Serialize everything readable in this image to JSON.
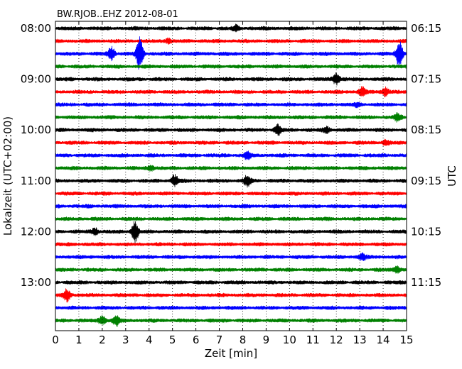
{
  "chart_data": {
    "type": "line",
    "title": "BW.RJOB..EHZ 2012-08-01",
    "xlabel": "Zeit  [min]",
    "ylabel_left": "Lokalzeit (UTC+02:00)",
    "ylabel_right": "UTC",
    "xlim": [
      0,
      15
    ],
    "x_ticks": [
      "0",
      "1",
      "2",
      "3",
      "4",
      "5",
      "6",
      "7",
      "8",
      "9",
      "10",
      "11",
      "12",
      "13",
      "14",
      "15"
    ],
    "grid_x": true,
    "trace_count": 24,
    "trace_colors": [
      "#000000",
      "#ff0000",
      "#0000ff",
      "#008000"
    ],
    "left_ticks": [
      {
        "trace": 0,
        "label": "08:00"
      },
      {
        "trace": 4,
        "label": "09:00"
      },
      {
        "trace": 8,
        "label": "10:00"
      },
      {
        "trace": 12,
        "label": "11:00"
      },
      {
        "trace": 16,
        "label": "12:00"
      },
      {
        "trace": 20,
        "label": "13:00"
      }
    ],
    "right_ticks": [
      {
        "trace": 0,
        "label": "06:15"
      },
      {
        "trace": 4,
        "label": "07:15"
      },
      {
        "trace": 8,
        "label": "08:15"
      },
      {
        "trace": 12,
        "label": "09:15"
      },
      {
        "trace": 16,
        "label": "10:15"
      },
      {
        "trace": 20,
        "label": "11:15"
      }
    ],
    "events": [
      {
        "trace": 0,
        "x": 7.7,
        "amp": 0.35
      },
      {
        "trace": 1,
        "x": 4.8,
        "amp": 0.3
      },
      {
        "trace": 2,
        "x": 2.4,
        "amp": 0.9
      },
      {
        "trace": 2,
        "x": 3.6,
        "amp": 2.2
      },
      {
        "trace": 2,
        "x": 14.7,
        "amp": 1.8
      },
      {
        "trace": 4,
        "x": 12.0,
        "amp": 0.8
      },
      {
        "trace": 5,
        "x": 13.1,
        "amp": 0.6
      },
      {
        "trace": 5,
        "x": 14.1,
        "amp": 0.6
      },
      {
        "trace": 6,
        "x": 12.9,
        "amp": 0.25
      },
      {
        "trace": 7,
        "x": 14.6,
        "amp": 0.45
      },
      {
        "trace": 8,
        "x": 9.5,
        "amp": 0.75
      },
      {
        "trace": 8,
        "x": 11.6,
        "amp": 0.4
      },
      {
        "trace": 9,
        "x": 14.1,
        "amp": 0.3
      },
      {
        "trace": 10,
        "x": 8.2,
        "amp": 0.5
      },
      {
        "trace": 11,
        "x": 4.1,
        "amp": 0.35
      },
      {
        "trace": 12,
        "x": 5.1,
        "amp": 0.75
      },
      {
        "trace": 12,
        "x": 8.2,
        "amp": 0.7
      },
      {
        "trace": 16,
        "x": 1.7,
        "amp": 0.45
      },
      {
        "trace": 16,
        "x": 3.4,
        "amp": 1.4
      },
      {
        "trace": 18,
        "x": 13.1,
        "amp": 0.45
      },
      {
        "trace": 19,
        "x": 14.6,
        "amp": 0.45
      },
      {
        "trace": 21,
        "x": 0.5,
        "amp": 0.8
      },
      {
        "trace": 23,
        "x": 2.0,
        "amp": 0.6
      },
      {
        "trace": 23,
        "x": 2.6,
        "amp": 0.7
      }
    ]
  }
}
